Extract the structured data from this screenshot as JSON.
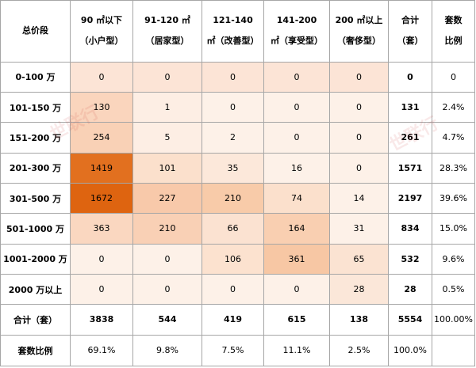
{
  "header": [
    {
      "l1": "总价段",
      "l2": ""
    },
    {
      "l1": "90 ㎡以下",
      "l2": "（小户型）"
    },
    {
      "l1": "91-120 ㎡",
      "l2": "（居家型）"
    },
    {
      "l1": "121-140",
      "l2": "㎡（改善型）"
    },
    {
      "l1": "141-200",
      "l2": "㎡（享受型）"
    },
    {
      "l1": "200 ㎡以上",
      "l2": "（奢侈型）"
    },
    {
      "l1": "合计",
      "l2": "（套）"
    },
    {
      "l1": "套数",
      "l2": "比例"
    }
  ],
  "rows": [
    {
      "label": "0-100 万",
      "values": [
        "0",
        "0",
        "0",
        "0",
        "0"
      ],
      "total": "0",
      "ratio": "0"
    },
    {
      "label": "101-150 万",
      "values": [
        "130",
        "1",
        "0",
        "0",
        "0"
      ],
      "total": "131",
      "ratio": "2.4%"
    },
    {
      "label": "151-200 万",
      "values": [
        "254",
        "5",
        "2",
        "0",
        "0"
      ],
      "total": "261",
      "ratio": "4.7%"
    },
    {
      "label": "201-300 万",
      "values": [
        "1419",
        "101",
        "35",
        "16",
        "0"
      ],
      "total": "1571",
      "ratio": "28.3%"
    },
    {
      "label": "301-500 万",
      "values": [
        "1672",
        "227",
        "210",
        "74",
        "14"
      ],
      "total": "2197",
      "ratio": "39.6%"
    },
    {
      "label": "501-1000 万",
      "values": [
        "363",
        "210",
        "66",
        "164",
        "31"
      ],
      "total": "834",
      "ratio": "15.0%"
    },
    {
      "label": "1001-2000 万",
      "values": [
        "0",
        "0",
        "106",
        "361",
        "65"
      ],
      "total": "532",
      "ratio": "9.6%"
    },
    {
      "label": "2000 万以上",
      "values": [
        "0",
        "0",
        "0",
        "0",
        "28"
      ],
      "total": "28",
      "ratio": "0.5%"
    }
  ],
  "sum_row": {
    "label": "合计（套）",
    "values": [
      "3838",
      "544",
      "419",
      "615",
      "138"
    ],
    "total": "5554",
    "ratio": "100.00%"
  },
  "ratio_row": {
    "label": "套数比例",
    "values": [
      "69.1%",
      "9.8%",
      "7.5%",
      "11.1%",
      "2.5%"
    ],
    "total": "100.0%",
    "ratio": ""
  },
  "cell_colors": [
    [
      "#fce4d6",
      "#fce4d6",
      "#fce4d6",
      "#fce4d6",
      "#fce4d6"
    ],
    [
      "#fad5bd",
      "#fdeee4",
      "#fdf1e8",
      "#fdf1e8",
      "#fdf1e8"
    ],
    [
      "#f9d1b6",
      "#fdeee4",
      "#fdf1e8",
      "#fdf1e8",
      "#fdf1e8"
    ],
    [
      "#e2701f",
      "#fbe0cc",
      "#fce8da",
      "#fdf1e8",
      "#fdf1e8"
    ],
    [
      "#de6410",
      "#f8c9aa",
      "#f8cba9",
      "#fbe0cc",
      "#fdf1e8"
    ],
    [
      "#fad7c0",
      "#f9d0b5",
      "#fbe2d1",
      "#f9cfb1",
      "#fdf1e8"
    ],
    [
      "#fdf1e8",
      "#fdf1e8",
      "#fce2cf",
      "#f7c7a4",
      "#fbe3d2"
    ],
    [
      "#fdf1e8",
      "#fdf1e8",
      "#fdf1e8",
      "#fdf1e8",
      "#fbe7d9"
    ]
  ],
  "watermarks": [
    "世联行",
    "世联行"
  ]
}
